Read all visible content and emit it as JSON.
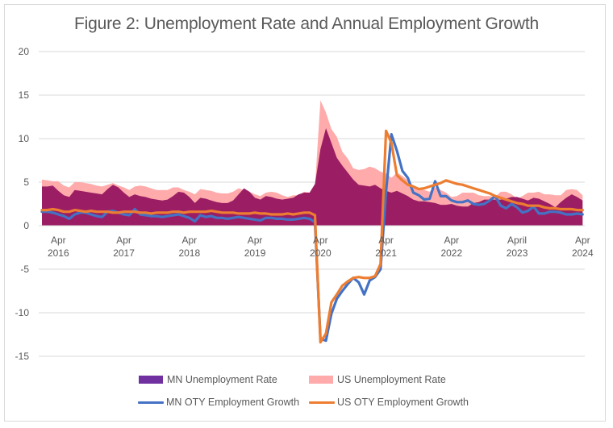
{
  "chart_data": {
    "type": "line",
    "title": "Figure 2: Unemployment Rate and Annual Employment Growth",
    "xlabel": "",
    "ylabel": "",
    "ylim": [
      -15,
      20
    ],
    "yticks": [
      20,
      15,
      10,
      5,
      0,
      -5,
      -10,
      -15
    ],
    "grid": true,
    "legend_position": "bottom",
    "x_start": "2016-01",
    "x_frequency": "monthly",
    "x_ticks": [
      {
        "month_index": 3,
        "line1": "Apr",
        "line2": "2016"
      },
      {
        "month_index": 15,
        "line1": "Apr",
        "line2": "2017"
      },
      {
        "month_index": 27,
        "line1": "Apr",
        "line2": "2018"
      },
      {
        "month_index": 39,
        "line1": "Apr",
        "line2": "2019"
      },
      {
        "month_index": 51,
        "line1": "Apr",
        "line2": "2020"
      },
      {
        "month_index": 63,
        "line1": "Apr",
        "line2": "2021"
      },
      {
        "month_index": 75,
        "line1": "Apr",
        "line2": "2022"
      },
      {
        "month_index": 87,
        "line1": "April",
        "line2": "2023"
      },
      {
        "month_index": 99,
        "line1": "Apr",
        "line2": "2024"
      }
    ],
    "series": [
      {
        "name": "US Unemployment Rate",
        "kind": "area",
        "color": "#FFABAB",
        "values": [
          5.3,
          5.2,
          5.1,
          5.1,
          4.6,
          4.4,
          5.0,
          5.0,
          4.9,
          4.8,
          4.6,
          4.5,
          4.7,
          4.9,
          4.6,
          4.4,
          4.1,
          4.5,
          4.6,
          4.5,
          4.3,
          4.1,
          4.1,
          4.1,
          4.4,
          4.4,
          4.1,
          3.9,
          3.6,
          4.2,
          4.1,
          4.0,
          3.8,
          3.7,
          3.7,
          3.9,
          4.3,
          4.1,
          3.9,
          3.6,
          3.4,
          3.8,
          3.9,
          3.8,
          3.5,
          3.3,
          3.5,
          3.5,
          3.9,
          3.8,
          4.5,
          14.4,
          13.0,
          11.1,
          10.2,
          8.5,
          7.7,
          6.6,
          6.4,
          6.5,
          6.8,
          6.6,
          6.2,
          6.0,
          5.5,
          6.1,
          5.7,
          5.2,
          4.6,
          4.3,
          4.1,
          3.9,
          4.4,
          4.1,
          3.8,
          3.3,
          3.4,
          3.8,
          3.8,
          3.8,
          3.5,
          3.4,
          3.4,
          3.3,
          3.9,
          3.9,
          3.6,
          3.1,
          3.4,
          3.8,
          3.8,
          3.9,
          3.6,
          3.6,
          3.5,
          3.5,
          4.1,
          4.2,
          4.1,
          3.5
        ]
      },
      {
        "name": "MN Unemployment Rate",
        "kind": "area",
        "color": "#9B1E64",
        "legend_color": "#7030A0",
        "values": [
          4.5,
          4.5,
          4.6,
          4.0,
          3.5,
          3.3,
          4.1,
          4.0,
          3.9,
          3.8,
          3.7,
          3.6,
          4.2,
          4.7,
          4.4,
          3.8,
          3.3,
          3.6,
          3.4,
          3.3,
          3.1,
          3.0,
          2.9,
          3.0,
          3.4,
          3.9,
          3.8,
          3.3,
          2.6,
          3.2,
          3.1,
          2.9,
          2.7,
          2.6,
          2.6,
          2.9,
          3.6,
          4.3,
          3.9,
          3.2,
          3.0,
          3.4,
          3.3,
          3.1,
          3.0,
          3.1,
          3.2,
          3.6,
          3.8,
          3.8,
          4.8,
          8.8,
          11.2,
          9.5,
          7.8,
          6.9,
          6.1,
          5.3,
          4.7,
          4.6,
          4.5,
          4.7,
          4.3,
          4.0,
          3.8,
          4.0,
          3.7,
          3.4,
          3.0,
          2.8,
          2.8,
          2.7,
          2.6,
          2.4,
          2.4,
          2.5,
          2.3,
          2.2,
          2.2,
          2.6,
          2.7,
          3.0,
          3.0,
          3.0,
          3.0,
          3.1,
          3.3,
          3.3,
          3.1,
          2.9,
          3.2,
          3.1,
          2.8,
          2.5,
          2.1,
          2.7,
          3.2,
          3.6,
          3.3,
          2.9
        ]
      },
      {
        "name": "MN OTY Employment Growth",
        "kind": "line",
        "color": "#4472C4",
        "values": [
          1.6,
          1.6,
          1.5,
          1.3,
          1.1,
          0.8,
          1.3,
          1.5,
          1.5,
          1.3,
          1.1,
          1.0,
          1.6,
          1.7,
          1.5,
          1.3,
          1.2,
          1.9,
          1.3,
          1.2,
          1.1,
          1.1,
          1.0,
          1.1,
          1.2,
          1.3,
          1.1,
          0.9,
          0.5,
          1.2,
          1.0,
          1.1,
          0.9,
          0.9,
          0.8,
          0.9,
          1.0,
          0.9,
          0.8,
          0.7,
          0.6,
          0.9,
          0.9,
          0.8,
          0.8,
          0.7,
          0.7,
          0.8,
          0.9,
          0.8,
          0.4,
          -13.0,
          -13.2,
          -10.1,
          -8.4,
          -7.5,
          -6.7,
          -6.0,
          -6.5,
          -7.9,
          -6.3,
          -5.9,
          -5.0,
          3.9,
          10.5,
          8.6,
          6.3,
          5.5,
          3.8,
          3.5,
          3.0,
          3.1,
          5.1,
          3.4,
          3.4,
          2.9,
          2.7,
          2.7,
          2.9,
          2.5,
          2.4,
          2.5,
          2.9,
          3.4,
          2.3,
          2.0,
          2.5,
          2.1,
          1.5,
          1.7,
          2.2,
          1.4,
          1.4,
          1.6,
          1.6,
          1.5,
          1.3,
          1.3,
          1.4,
          1.3
        ]
      },
      {
        "name": "US OTY Employment Growth",
        "kind": "line",
        "color": "#ED7D31",
        "values": [
          1.8,
          1.8,
          1.9,
          1.8,
          1.6,
          1.6,
          1.8,
          1.7,
          1.6,
          1.7,
          1.6,
          1.6,
          1.6,
          1.5,
          1.5,
          1.6,
          1.6,
          1.6,
          1.5,
          1.5,
          1.4,
          1.5,
          1.5,
          1.5,
          1.6,
          1.6,
          1.5,
          1.6,
          1.6,
          1.6,
          1.6,
          1.7,
          1.6,
          1.5,
          1.5,
          1.5,
          1.4,
          1.4,
          1.4,
          1.5,
          1.4,
          1.4,
          1.3,
          1.3,
          1.3,
          1.4,
          1.3,
          1.4,
          1.5,
          1.5,
          1.2,
          -13.4,
          -12.4,
          -8.8,
          -7.9,
          -6.9,
          -6.4,
          -6.0,
          -5.9,
          -6.0,
          -6.0,
          -5.8,
          -4.4,
          10.9,
          9.5,
          5.8,
          5.2,
          4.7,
          4.5,
          4.2,
          4.3,
          4.5,
          4.7,
          4.9,
          5.2,
          5.0,
          4.8,
          4.7,
          4.5,
          4.3,
          4.1,
          3.9,
          3.7,
          3.4,
          3.2,
          3.0,
          2.8,
          2.6,
          2.5,
          2.3,
          2.3,
          2.3,
          2.1,
          2.0,
          2.0,
          1.9,
          1.9,
          1.9,
          1.8,
          1.8
        ]
      }
    ]
  },
  "legend": {
    "items": [
      {
        "label": "MN Unemployment Rate",
        "kind": "box",
        "color": "#7030A0"
      },
      {
        "label": "US Unemployment Rate",
        "kind": "box",
        "color": "#FFABAB"
      },
      {
        "label": "MN OTY Employment Growth",
        "kind": "line",
        "color": "#4472C4"
      },
      {
        "label": "US OTY Employment Growth",
        "kind": "line",
        "color": "#ED7D31"
      }
    ]
  }
}
